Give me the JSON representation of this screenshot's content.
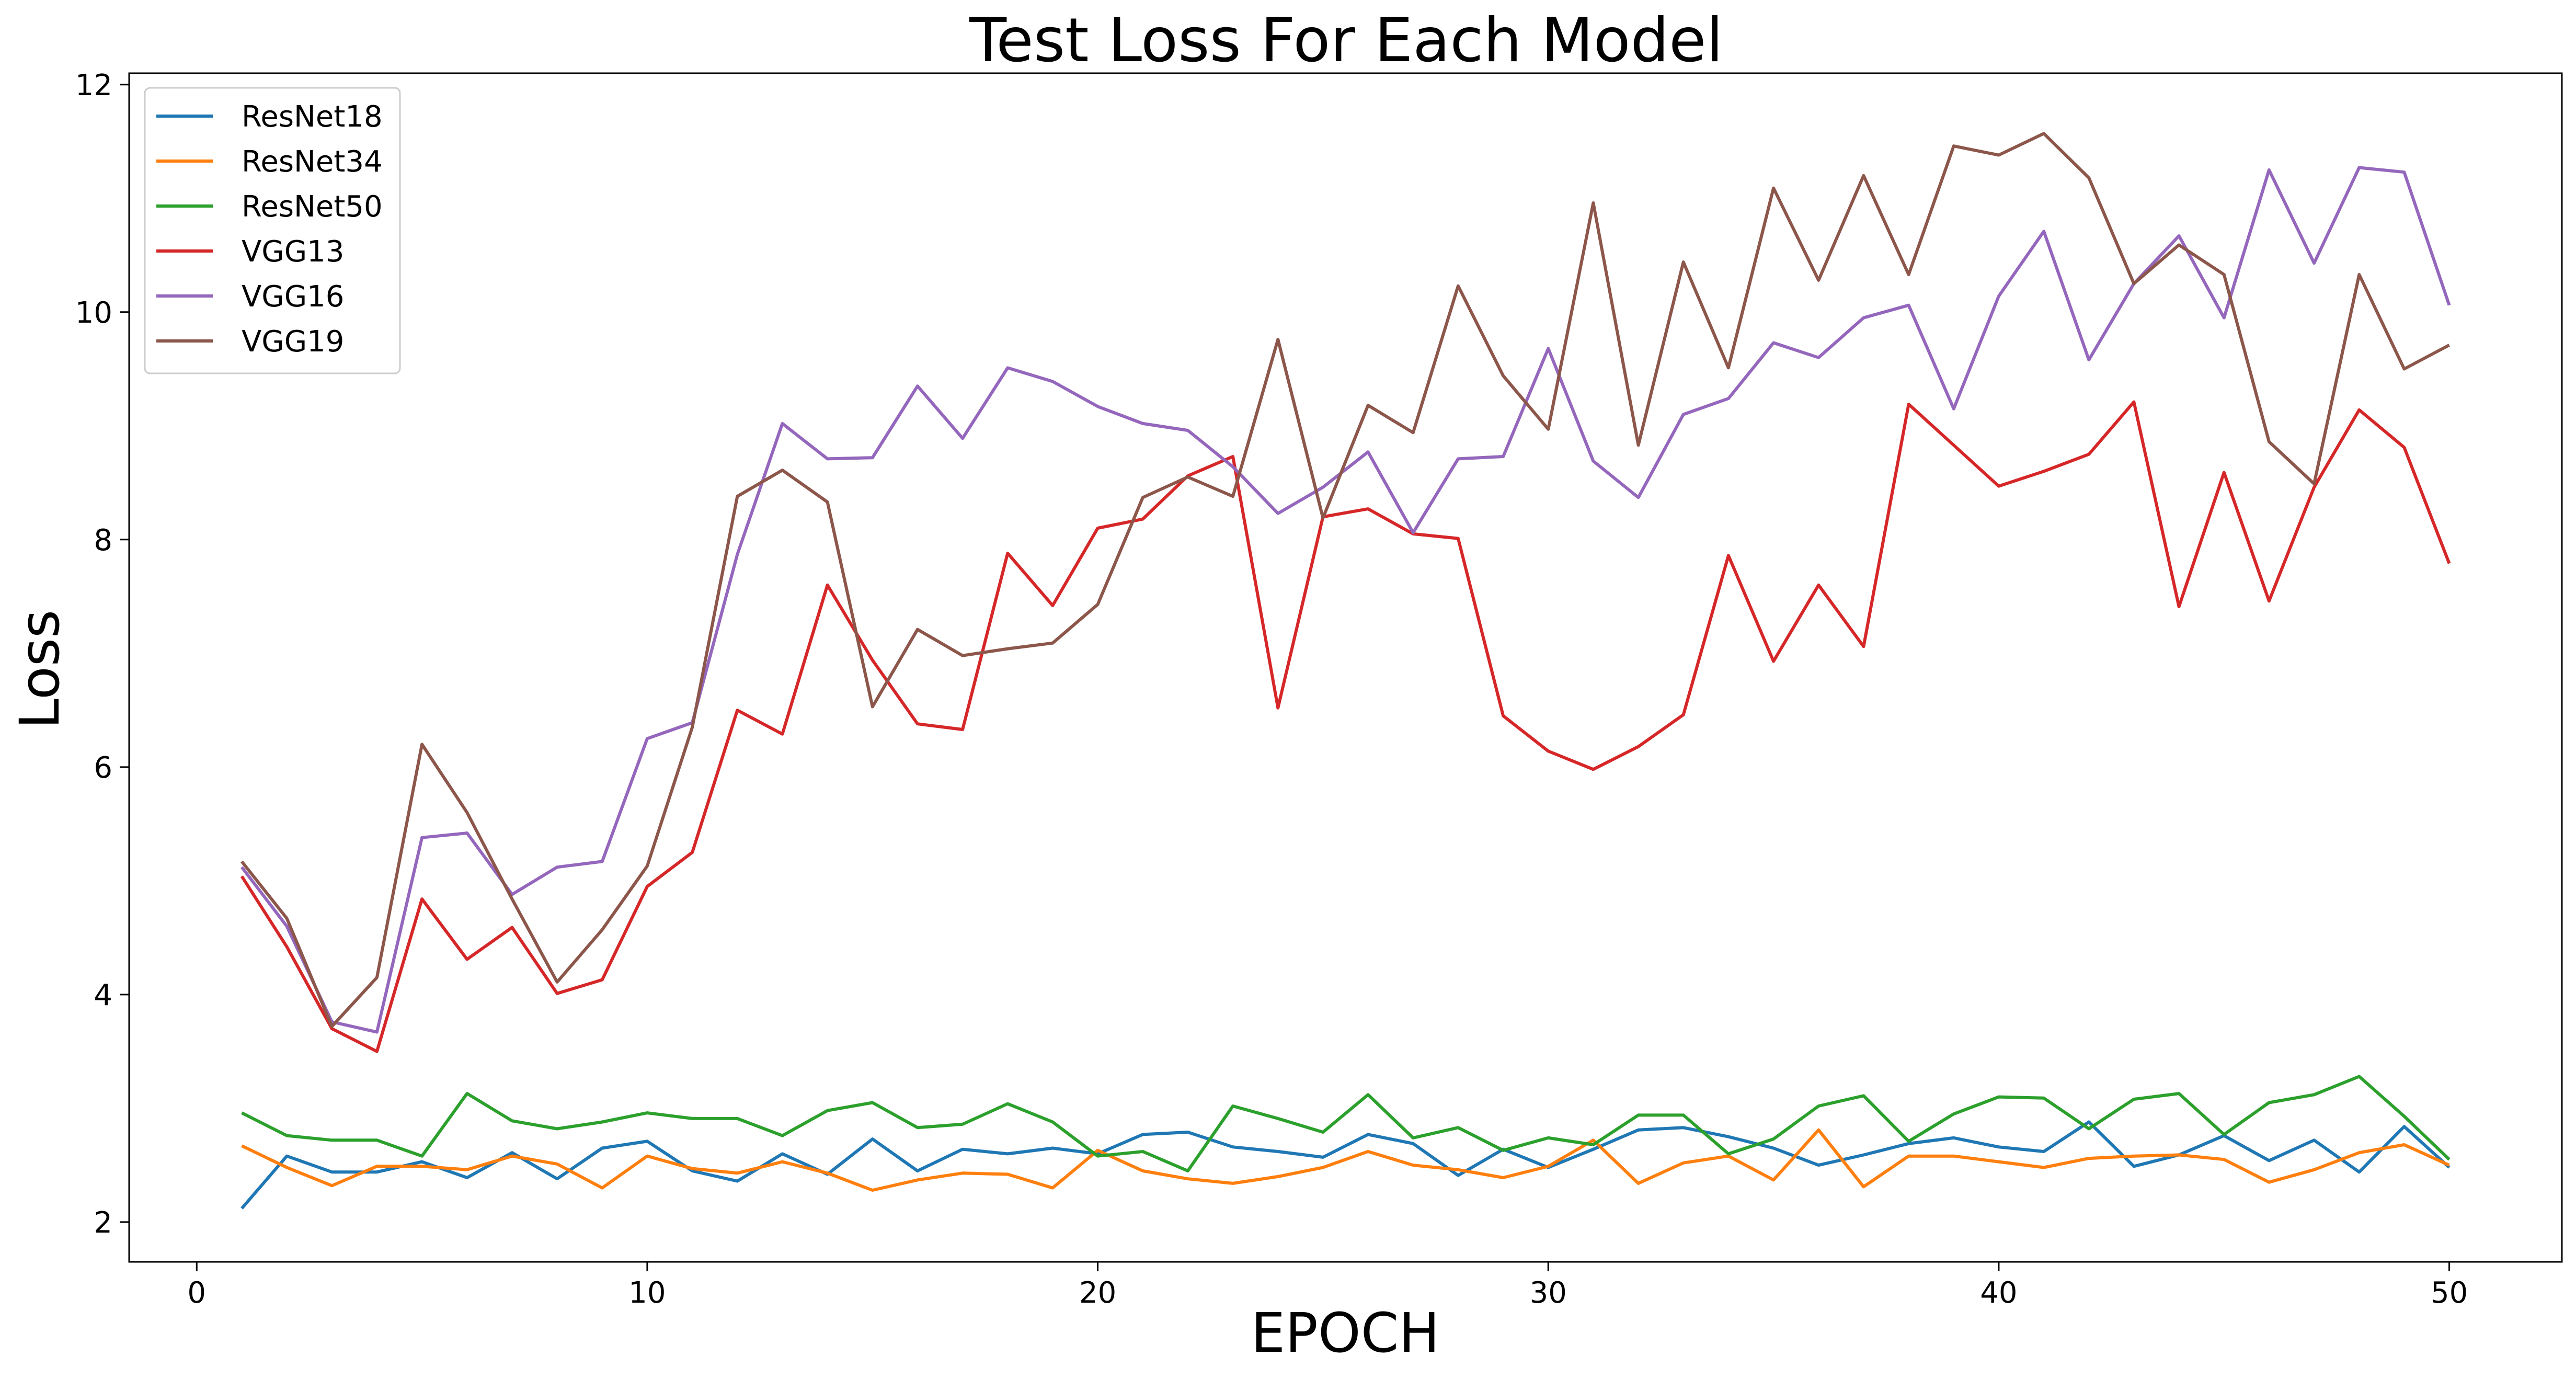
{
  "chart_data": {
    "type": "line",
    "title": "Test Loss For Each Model",
    "xlabel": "EPOCH",
    "ylabel": "Loss",
    "xlim": [
      -1.5,
      52.5
    ],
    "ylim": [
      1.65,
      12.1
    ],
    "xticks": [
      0,
      10,
      20,
      30,
      40,
      50
    ],
    "yticks": [
      2,
      4,
      6,
      8,
      10,
      12
    ],
    "grid": false,
    "legend_position": "top-left",
    "x": [
      1,
      2,
      3,
      4,
      5,
      6,
      7,
      8,
      9,
      10,
      11,
      12,
      13,
      14,
      15,
      16,
      17,
      18,
      19,
      20,
      21,
      22,
      23,
      24,
      25,
      26,
      27,
      28,
      29,
      30,
      31,
      32,
      33,
      34,
      35,
      36,
      37,
      38,
      39,
      40,
      41,
      42,
      43,
      44,
      45,
      46,
      47,
      48,
      49,
      50
    ],
    "series": [
      {
        "name": "ResNet18",
        "color": "#1f77b4",
        "values": [
          2.12,
          2.58,
          2.44,
          2.44,
          2.53,
          2.39,
          2.61,
          2.38,
          2.65,
          2.71,
          2.45,
          2.36,
          2.6,
          2.42,
          2.73,
          2.45,
          2.64,
          2.6,
          2.65,
          2.6,
          2.77,
          2.79,
          2.66,
          2.62,
          2.57,
          2.77,
          2.69,
          2.41,
          2.64,
          2.48,
          2.64,
          2.81,
          2.83,
          2.75,
          2.65,
          2.5,
          2.59,
          2.69,
          2.74,
          2.66,
          2.62,
          2.88,
          2.49,
          2.59,
          2.76,
          2.54,
          2.72,
          2.44,
          2.84,
          2.48
        ]
      },
      {
        "name": "ResNet34",
        "color": "#ff7f0e",
        "values": [
          2.67,
          2.48,
          2.32,
          2.49,
          2.49,
          2.46,
          2.58,
          2.51,
          2.3,
          2.58,
          2.47,
          2.43,
          2.53,
          2.43,
          2.28,
          2.37,
          2.43,
          2.42,
          2.3,
          2.63,
          2.45,
          2.38,
          2.34,
          2.4,
          2.48,
          2.62,
          2.5,
          2.46,
          2.39,
          2.49,
          2.72,
          2.34,
          2.52,
          2.58,
          2.37,
          2.81,
          2.31,
          2.58,
          2.58,
          2.53,
          2.48,
          2.56,
          2.58,
          2.59,
          2.55,
          2.35,
          2.46,
          2.61,
          2.68,
          2.5
        ]
      },
      {
        "name": "ResNet50",
        "color": "#2ca02c",
        "values": [
          2.96,
          2.76,
          2.72,
          2.72,
          2.58,
          3.13,
          2.89,
          2.82,
          2.88,
          2.96,
          2.91,
          2.91,
          2.76,
          2.98,
          3.05,
          2.83,
          2.86,
          3.04,
          2.88,
          2.58,
          2.62,
          2.45,
          3.02,
          2.91,
          2.79,
          3.12,
          2.74,
          2.83,
          2.63,
          2.74,
          2.68,
          2.94,
          2.94,
          2.6,
          2.73,
          3.02,
          3.11,
          2.71,
          2.95,
          3.1,
          3.09,
          2.82,
          3.08,
          3.13,
          2.77,
          3.05,
          3.12,
          3.28,
          2.93,
          2.55
        ]
      },
      {
        "name": "VGG13",
        "color": "#d62728",
        "values": [
          5.04,
          4.42,
          3.7,
          3.5,
          4.84,
          4.31,
          4.59,
          4.01,
          4.13,
          4.95,
          5.25,
          6.5,
          6.29,
          7.6,
          6.94,
          6.38,
          6.33,
          7.88,
          7.42,
          8.1,
          8.18,
          8.56,
          8.73,
          6.52,
          8.2,
          8.27,
          8.05,
          8.01,
          6.45,
          6.14,
          5.98,
          6.18,
          6.46,
          7.86,
          6.93,
          7.6,
          7.06,
          9.19,
          8.83,
          8.47,
          8.6,
          8.75,
          9.21,
          7.41,
          8.59,
          7.46,
          8.46,
          9.14,
          8.81,
          7.79
        ]
      },
      {
        "name": "VGG16",
        "color": "#9467bd",
        "values": [
          5.12,
          4.6,
          3.76,
          3.67,
          5.38,
          5.42,
          4.88,
          5.12,
          5.17,
          6.25,
          6.39,
          7.87,
          9.02,
          8.71,
          8.72,
          9.35,
          8.89,
          9.51,
          9.39,
          9.17,
          9.02,
          8.96,
          8.64,
          8.23,
          8.46,
          8.77,
          8.06,
          8.71,
          8.73,
          9.68,
          8.69,
          8.37,
          9.1,
          9.24,
          9.73,
          9.6,
          9.95,
          10.06,
          9.15,
          10.14,
          10.71,
          9.58,
          10.25,
          10.67,
          9.95,
          11.25,
          10.43,
          11.27,
          11.23,
          10.06
        ]
      },
      {
        "name": "VGG19",
        "color": "#8c564b",
        "values": [
          5.17,
          4.67,
          3.72,
          4.15,
          6.2,
          5.6,
          4.84,
          4.11,
          4.57,
          5.13,
          6.35,
          8.38,
          8.61,
          8.33,
          6.53,
          7.21,
          6.98,
          7.04,
          7.09,
          7.43,
          8.37,
          8.55,
          8.38,
          9.76,
          8.19,
          9.18,
          8.94,
          10.23,
          9.44,
          8.97,
          10.96,
          8.83,
          10.44,
          9.51,
          11.09,
          10.28,
          11.2,
          10.33,
          11.46,
          11.38,
          11.57,
          11.18,
          10.25,
          10.59,
          10.33,
          8.86,
          8.49,
          10.33,
          9.5,
          9.71
        ]
      }
    ]
  }
}
